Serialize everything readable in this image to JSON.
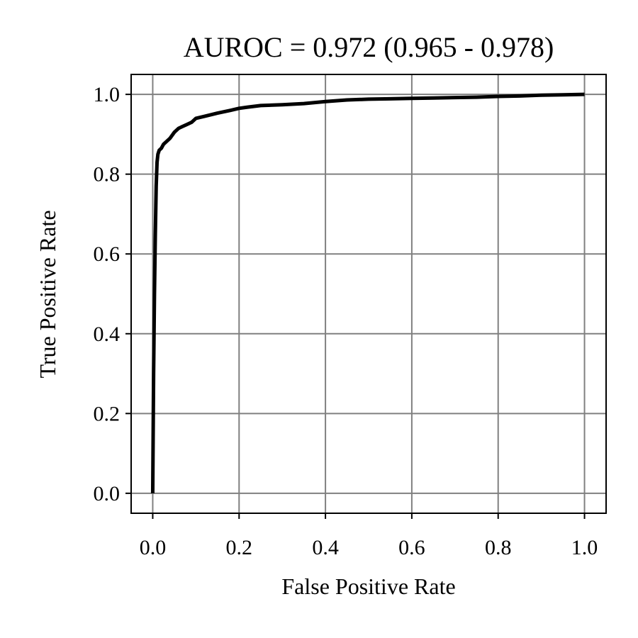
{
  "chart_data": {
    "type": "line",
    "title": "AUROC = 0.972 (0.965 - 0.978)",
    "xlabel": "False Positive Rate",
    "ylabel": "True Positive Rate",
    "xlim": [
      -0.05,
      1.05
    ],
    "ylim": [
      -0.05,
      1.05
    ],
    "xticks": [
      0.0,
      0.2,
      0.4,
      0.6,
      0.8,
      1.0
    ],
    "yticks": [
      0.0,
      0.2,
      0.4,
      0.6,
      0.8,
      1.0
    ],
    "xtick_labels": [
      "0.0",
      "0.2",
      "0.4",
      "0.6",
      "0.8",
      "1.0"
    ],
    "ytick_labels": [
      "0.0",
      "0.2",
      "0.4",
      "0.6",
      "0.8",
      "1.0"
    ],
    "grid": true,
    "colors": {
      "line": "#000000",
      "grid": "#808080",
      "frame": "#000000"
    },
    "series": [
      {
        "x": [
          0.0,
          0.002,
          0.004,
          0.006,
          0.008,
          0.01,
          0.012,
          0.015,
          0.02,
          0.025,
          0.03,
          0.04,
          0.05,
          0.06,
          0.07,
          0.08,
          0.09,
          0.1,
          0.12,
          0.15,
          0.18,
          0.2,
          0.22,
          0.25,
          0.3,
          0.35,
          0.4,
          0.45,
          0.5,
          0.55,
          0.6,
          0.65,
          0.7,
          0.75,
          0.8,
          0.85,
          0.9,
          0.95,
          1.0
        ],
        "y": [
          0.0,
          0.3,
          0.5,
          0.65,
          0.77,
          0.83,
          0.85,
          0.86,
          0.865,
          0.875,
          0.88,
          0.89,
          0.905,
          0.915,
          0.92,
          0.925,
          0.93,
          0.94,
          0.945,
          0.953,
          0.96,
          0.965,
          0.968,
          0.972,
          0.974,
          0.977,
          0.982,
          0.986,
          0.988,
          0.989,
          0.99,
          0.991,
          0.992,
          0.993,
          0.995,
          0.996,
          0.998,
          0.999,
          1.0
        ]
      }
    ]
  }
}
